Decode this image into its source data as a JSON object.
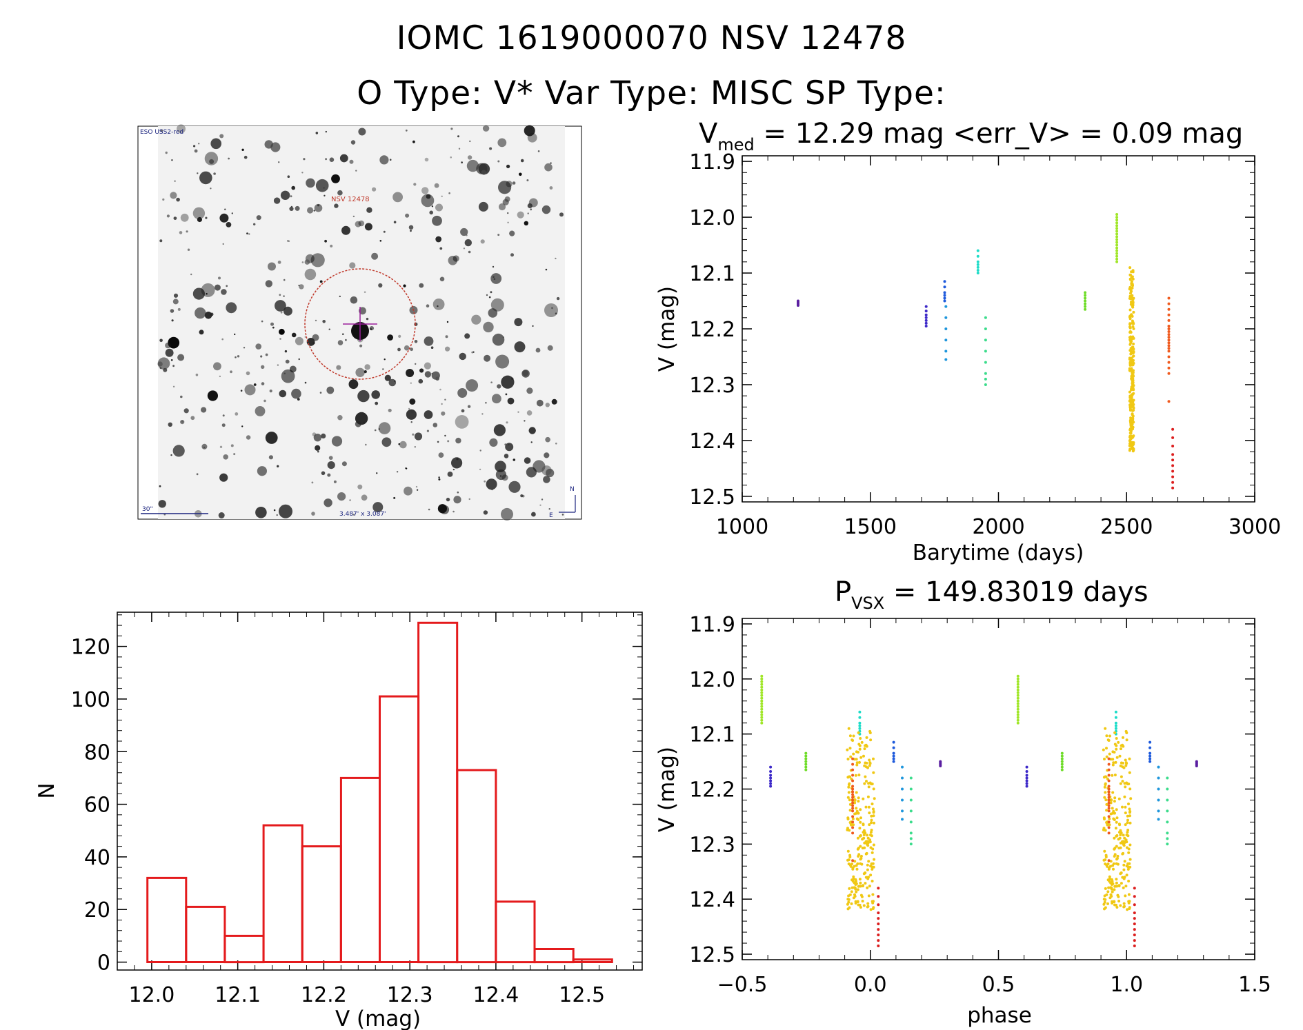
{
  "header": {
    "title_line1": "IOMC 1619000070    NSV 12478",
    "title_line2": "O Type: V*   Var Type: MISC   SP Type:"
  },
  "finder": {
    "survey_label": "ESO USS2-red",
    "target_label": "NSV 12478",
    "scale_label": "30\"",
    "fov_label": "3.487' x 3.087'",
    "north_label": "N",
    "east_label": "E"
  },
  "chart_data": [
    {
      "id": "light-curve",
      "type": "scatter",
      "title_prefix": "V",
      "title_sub": "med",
      "title_rest": " = 12.29 mag <err_V> = 0.09 mag",
      "xlabel": "Barytime (days)",
      "ylabel": "V (mag)",
      "xlim": [
        1000,
        3000
      ],
      "ylim": [
        11.89,
        12.51
      ],
      "y_inverted": true,
      "xticks": [
        1000,
        1500,
        2000,
        2500,
        3000
      ],
      "xtick_labels": [
        "1000",
        "1500",
        "2000",
        "2500",
        "3000"
      ],
      "yticks": [
        11.9,
        12.0,
        12.1,
        12.2,
        12.3,
        12.4,
        12.5
      ],
      "ytick_labels": [
        "11.9",
        "12.0",
        "12.1",
        "12.2",
        "12.3",
        "12.4",
        "12.5"
      ],
      "series": [
        {
          "name": "epoch-1",
          "color": "#5a1ea0",
          "t": 1218,
          "y": [
            12.15,
            12.152,
            12.154,
            12.156,
            12.158
          ]
        },
        {
          "name": "epoch-2",
          "color": "#3c28c8",
          "t": 1718,
          "y": [
            12.16,
            12.168,
            12.175,
            12.18,
            12.185,
            12.19,
            12.195
          ]
        },
        {
          "name": "epoch-3",
          "color": "#1e5adc",
          "t": 1790,
          "y": [
            12.115,
            12.125,
            12.135,
            12.14,
            12.145,
            12.15
          ]
        },
        {
          "name": "epoch-4",
          "color": "#1e96dc",
          "t": 1795,
          "y": [
            12.16,
            12.18,
            12.2,
            12.22,
            12.24,
            12.255
          ]
        },
        {
          "name": "epoch-5",
          "color": "#1edcc8",
          "t": 1920,
          "y": [
            12.06,
            12.07,
            12.08,
            12.085,
            12.09,
            12.095,
            12.1
          ]
        },
        {
          "name": "epoch-6",
          "color": "#3cdc8c",
          "t": 1950,
          "y": [
            12.18,
            12.2,
            12.22,
            12.24,
            12.26,
            12.28,
            12.29,
            12.3
          ]
        },
        {
          "name": "epoch-7",
          "color": "#6edc28",
          "t": 2338,
          "y": [
            12.135,
            12.14,
            12.145,
            12.15,
            12.155,
            12.16,
            12.165
          ]
        },
        {
          "name": "epoch-8",
          "color": "#a0e628",
          "t": 2462,
          "y": [
            11.995,
            12.0,
            12.005,
            12.01,
            12.015,
            12.02,
            12.025,
            12.03,
            12.035,
            12.04,
            12.045,
            12.05,
            12.055,
            12.06,
            12.065,
            12.07,
            12.075,
            12.08
          ]
        },
        {
          "name": "epoch-9",
          "color": "#f0c814",
          "t": 2520,
          "range": [
            12.09,
            12.42
          ],
          "count": 260,
          "spread": 16
        },
        {
          "name": "epoch-10",
          "color": "#f05a1e",
          "t": 2665,
          "y": [
            12.145,
            12.155,
            12.165,
            12.175,
            12.185,
            12.195,
            12.2,
            12.205,
            12.21,
            12.215,
            12.22,
            12.225,
            12.23,
            12.235,
            12.24,
            12.25,
            12.26,
            12.27,
            12.28,
            12.33
          ]
        },
        {
          "name": "epoch-11",
          "color": "#dc1e1e",
          "t": 2680,
          "y": [
            12.38,
            12.395,
            12.41,
            12.425,
            12.435,
            12.445,
            12.455,
            12.465,
            12.475,
            12.485
          ]
        }
      ]
    },
    {
      "id": "histogram",
      "type": "bar",
      "xlabel": "V (mag)",
      "ylabel": "N",
      "xlim": [
        11.96,
        12.57
      ],
      "ylim": [
        -3,
        133
      ],
      "xticks": [
        12.0,
        12.1,
        12.2,
        12.3,
        12.4,
        12.5
      ],
      "xtick_labels": [
        "12.0",
        "12.1",
        "12.2",
        "12.3",
        "12.4",
        "12.5"
      ],
      "yticks": [
        0,
        20,
        40,
        60,
        80,
        100,
        120
      ],
      "ytick_labels": [
        "0",
        "20",
        "40",
        "60",
        "80",
        "100",
        "120"
      ],
      "bin_edges": [
        11.995,
        12.04,
        12.085,
        12.13,
        12.175,
        12.22,
        12.265,
        12.31,
        12.355,
        12.4,
        12.445,
        12.49,
        12.535
      ],
      "values": [
        32,
        21,
        10,
        52,
        44,
        70,
        101,
        129,
        73,
        23,
        5,
        1
      ],
      "bar_color": "#e41a1c"
    },
    {
      "id": "phase-curve",
      "type": "scatter",
      "title_prefix": "P",
      "title_sub": "VSX",
      "title_rest": " = 149.83019 days",
      "xlabel": "phase",
      "ylabel": "V (mag)",
      "xlim": [
        -0.5,
        1.5
      ],
      "ylim": [
        11.89,
        12.51
      ],
      "y_inverted": true,
      "xticks": [
        -0.5,
        0.0,
        0.5,
        1.0,
        1.5
      ],
      "xtick_labels": [
        "−0.5",
        "0.0",
        "0.5",
        "1.0",
        "1.5"
      ],
      "yticks": [
        11.9,
        12.0,
        12.1,
        12.2,
        12.3,
        12.4,
        12.5
      ],
      "ytick_labels": [
        "11.9",
        "12.0",
        "12.1",
        "12.2",
        "12.3",
        "12.4",
        "12.5"
      ],
      "period_days": 149.83019,
      "epoch_days": 2525.5
    }
  ]
}
